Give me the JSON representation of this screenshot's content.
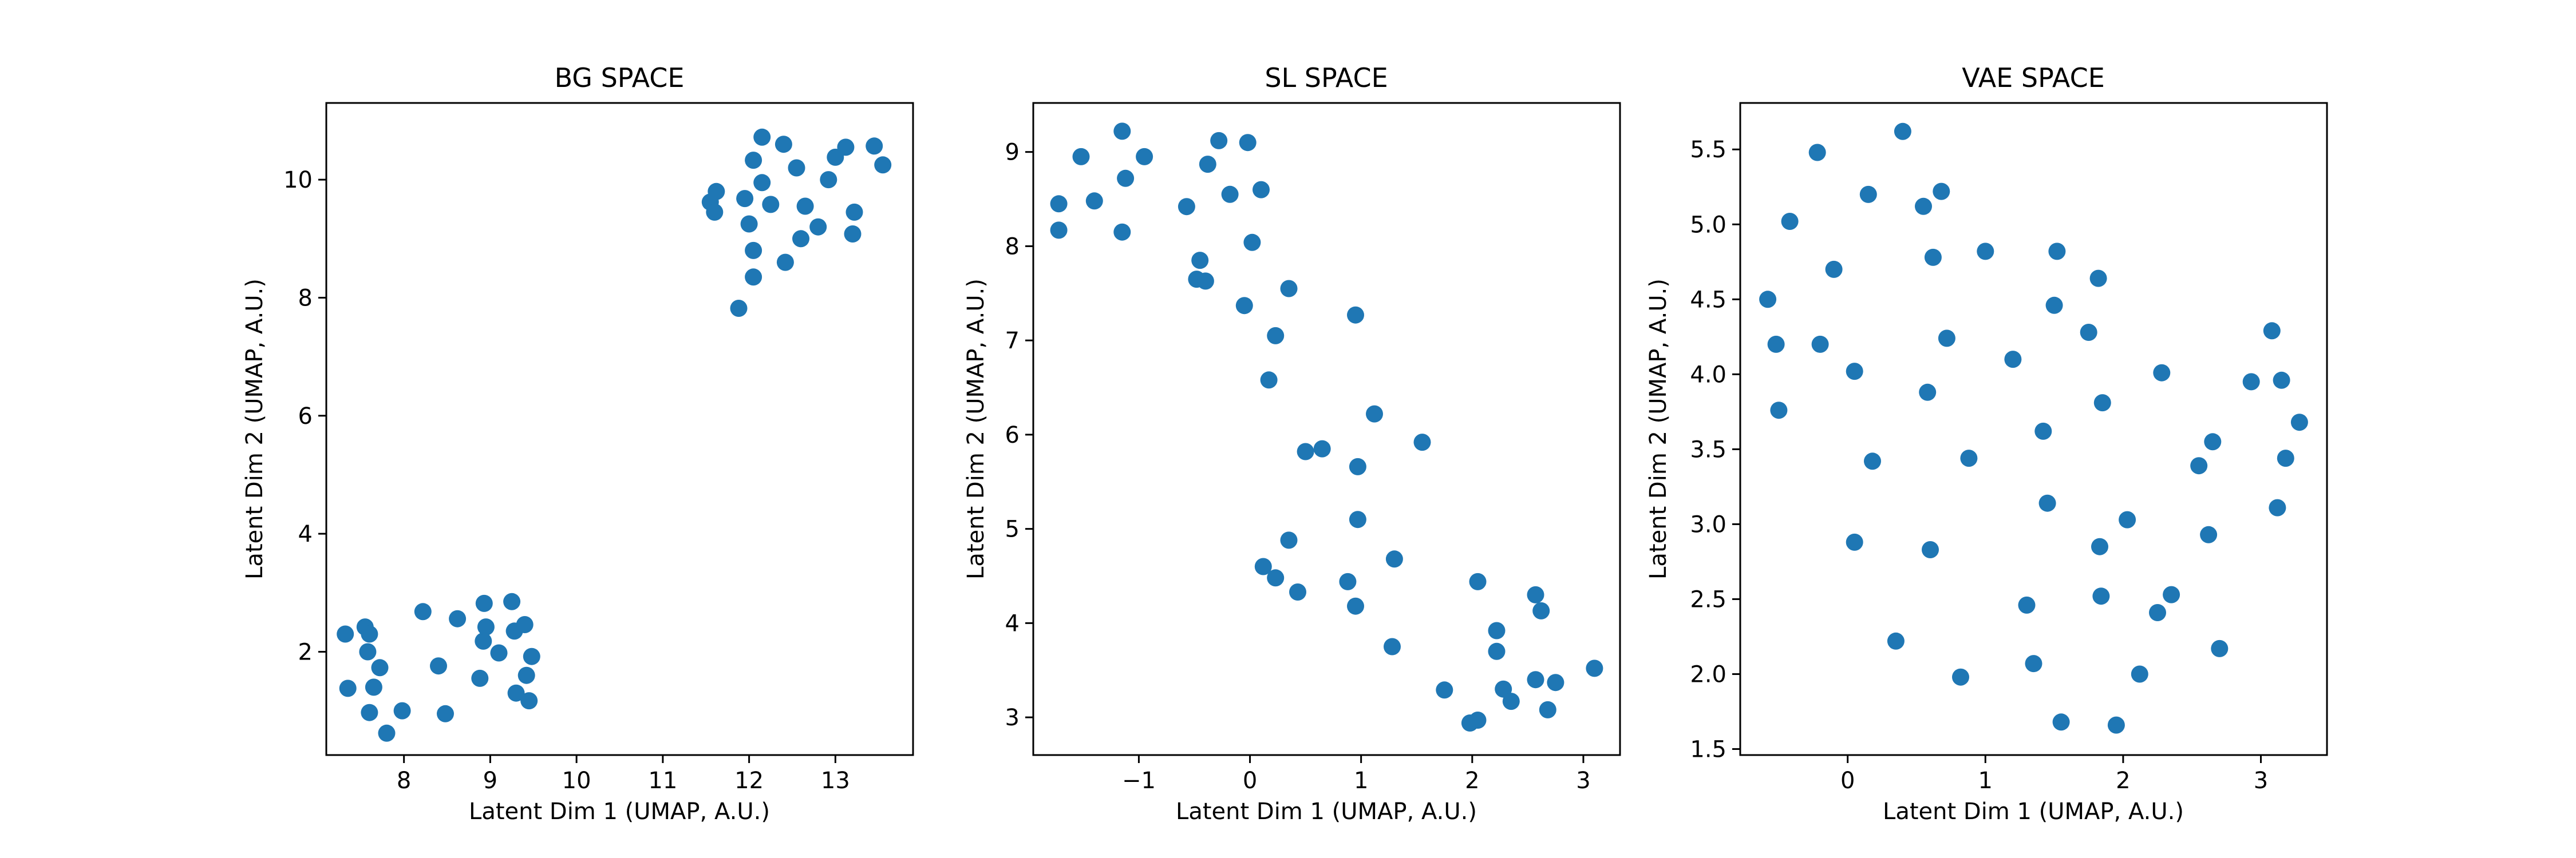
{
  "chart_data": [
    {
      "type": "scatter",
      "title": "BG SPACE",
      "xlabel": "Latent Dim 1 (UMAP, A.U.)",
      "ylabel": "Latent Dim 2 (UMAP, A.U.)",
      "xlim": [
        7.1,
        13.9
      ],
      "ylim": [
        0.25,
        11.3
      ],
      "xticks": [
        8,
        9,
        10,
        11,
        12,
        13
      ],
      "xtick_labels": [
        "8",
        "9",
        "10",
        "11",
        "12",
        "13"
      ],
      "yticks": [
        2,
        4,
        6,
        8,
        10
      ],
      "ytick_labels": [
        "2",
        "4",
        "6",
        "8",
        "10"
      ],
      "marker_color": "#1f77b4",
      "points": [
        [
          7.32,
          2.3
        ],
        [
          7.55,
          2.42
        ],
        [
          7.6,
          2.3
        ],
        [
          7.58,
          2.0
        ],
        [
          7.72,
          1.73
        ],
        [
          7.35,
          1.38
        ],
        [
          7.65,
          1.4
        ],
        [
          7.6,
          0.97
        ],
        [
          7.8,
          0.62
        ],
        [
          7.98,
          1.0
        ],
        [
          8.22,
          2.68
        ],
        [
          8.4,
          1.76
        ],
        [
          8.48,
          0.95
        ],
        [
          8.62,
          2.56
        ],
        [
          8.88,
          1.55
        ],
        [
          8.93,
          2.82
        ],
        [
          8.92,
          2.18
        ],
        [
          8.95,
          2.42
        ],
        [
          9.1,
          1.98
        ],
        [
          9.25,
          2.85
        ],
        [
          9.28,
          2.35
        ],
        [
          9.3,
          1.3
        ],
        [
          9.4,
          2.46
        ],
        [
          9.42,
          1.6
        ],
        [
          9.45,
          1.17
        ],
        [
          9.48,
          1.92
        ],
        [
          11.55,
          9.62
        ],
        [
          11.6,
          9.45
        ],
        [
          11.62,
          9.8
        ],
        [
          11.88,
          7.82
        ],
        [
          11.95,
          9.68
        ],
        [
          12.0,
          9.25
        ],
        [
          12.05,
          10.33
        ],
        [
          12.05,
          8.8
        ],
        [
          12.05,
          8.35
        ],
        [
          12.15,
          10.72
        ],
        [
          12.15,
          9.95
        ],
        [
          12.25,
          9.58
        ],
        [
          12.4,
          10.6
        ],
        [
          12.42,
          8.6
        ],
        [
          12.55,
          10.2
        ],
        [
          12.6,
          9.0
        ],
        [
          12.65,
          9.55
        ],
        [
          12.8,
          9.2
        ],
        [
          12.92,
          10.0
        ],
        [
          13.0,
          10.38
        ],
        [
          13.12,
          10.55
        ],
        [
          13.2,
          9.08
        ],
        [
          13.22,
          9.45
        ],
        [
          13.45,
          10.57
        ],
        [
          13.55,
          10.25
        ]
      ]
    },
    {
      "type": "scatter",
      "title": "SL SPACE",
      "xlabel": "Latent Dim 1 (UMAP, A.U.)",
      "ylabel": "Latent Dim 2 (UMAP, A.U.)",
      "xlim": [
        -1.95,
        3.33
      ],
      "ylim": [
        2.6,
        9.52
      ],
      "xticks": [
        -1,
        0,
        1,
        2,
        3
      ],
      "xtick_labels": [
        "−1",
        "0",
        "1",
        "2",
        "3"
      ],
      "yticks": [
        3,
        4,
        5,
        6,
        7,
        8,
        9
      ],
      "ytick_labels": [
        "3",
        "4",
        "5",
        "6",
        "7",
        "8",
        "9"
      ],
      "marker_color": "#1f77b4",
      "points": [
        [
          -1.72,
          8.45
        ],
        [
          -1.72,
          8.17
        ],
        [
          -1.52,
          8.95
        ],
        [
          -1.4,
          8.48
        ],
        [
          -1.15,
          9.22
        ],
        [
          -1.12,
          8.72
        ],
        [
          -1.15,
          8.15
        ],
        [
          -0.95,
          8.95
        ],
        [
          -0.57,
          8.42
        ],
        [
          -0.48,
          7.65
        ],
        [
          -0.45,
          7.85
        ],
        [
          -0.38,
          8.87
        ],
        [
          -0.4,
          7.63
        ],
        [
          -0.28,
          9.12
        ],
        [
          -0.18,
          8.55
        ],
        [
          -0.02,
          9.1
        ],
        [
          -0.05,
          7.37
        ],
        [
          0.02,
          8.04
        ],
        [
          0.1,
          8.6
        ],
        [
          0.17,
          6.58
        ],
        [
          0.23,
          7.05
        ],
        [
          0.35,
          7.55
        ],
        [
          0.95,
          7.27
        ],
        [
          0.5,
          5.82
        ],
        [
          0.65,
          5.85
        ],
        [
          1.12,
          6.22
        ],
        [
          0.97,
          5.66
        ],
        [
          1.55,
          5.92
        ],
        [
          0.97,
          5.1
        ],
        [
          0.35,
          4.88
        ],
        [
          0.12,
          4.6
        ],
        [
          0.23,
          4.48
        ],
        [
          0.43,
          4.33
        ],
        [
          0.88,
          4.44
        ],
        [
          0.95,
          4.18
        ],
        [
          1.3,
          4.68
        ],
        [
          1.28,
          3.75
        ],
        [
          2.05,
          4.44
        ],
        [
          2.22,
          3.92
        ],
        [
          2.22,
          3.7
        ],
        [
          2.28,
          3.3
        ],
        [
          2.35,
          3.17
        ],
        [
          2.57,
          4.3
        ],
        [
          2.62,
          4.13
        ],
        [
          2.57,
          3.4
        ],
        [
          2.68,
          3.08
        ],
        [
          2.75,
          3.37
        ],
        [
          1.75,
          3.29
        ],
        [
          1.98,
          2.94
        ],
        [
          2.05,
          2.97
        ],
        [
          3.1,
          3.52
        ]
      ]
    },
    {
      "type": "scatter",
      "title": "VAE SPACE",
      "xlabel": "Latent Dim 1 (UMAP, A.U.)",
      "ylabel": "Latent Dim 2 (UMAP, A.U.)",
      "xlim": [
        -0.78,
        3.48
      ],
      "ylim": [
        1.46,
        5.81
      ],
      "xticks": [
        0,
        1,
        2,
        3
      ],
      "xtick_labels": [
        "0",
        "1",
        "2",
        "3"
      ],
      "yticks": [
        1.5,
        2.0,
        2.5,
        3.0,
        3.5,
        4.0,
        4.5,
        5.0,
        5.5
      ],
      "ytick_labels": [
        "1.5",
        "2.0",
        "2.5",
        "3.0",
        "3.5",
        "4.0",
        "4.5",
        "5.0",
        "5.5"
      ],
      "marker_color": "#1f77b4",
      "points": [
        [
          -0.58,
          4.5
        ],
        [
          -0.52,
          4.2
        ],
        [
          -0.5,
          3.76
        ],
        [
          -0.42,
          5.02
        ],
        [
          -0.22,
          5.48
        ],
        [
          -0.2,
          4.2
        ],
        [
          -0.1,
          4.7
        ],
        [
          0.05,
          4.02
        ],
        [
          0.05,
          2.88
        ],
        [
          0.15,
          5.2
        ],
        [
          0.18,
          3.42
        ],
        [
          0.35,
          2.22
        ],
        [
          0.4,
          5.62
        ],
        [
          0.55,
          5.12
        ],
        [
          0.58,
          3.88
        ],
        [
          0.6,
          2.83
        ],
        [
          0.62,
          4.78
        ],
        [
          0.68,
          5.22
        ],
        [
          0.72,
          4.24
        ],
        [
          0.82,
          1.98
        ],
        [
          0.88,
          3.44
        ],
        [
          1.0,
          4.82
        ],
        [
          1.2,
          4.1
        ],
        [
          1.3,
          2.46
        ],
        [
          1.35,
          2.07
        ],
        [
          1.42,
          3.62
        ],
        [
          1.45,
          3.14
        ],
        [
          1.5,
          4.46
        ],
        [
          1.52,
          4.82
        ],
        [
          1.55,
          1.68
        ],
        [
          1.75,
          4.28
        ],
        [
          1.82,
          4.64
        ],
        [
          1.83,
          2.85
        ],
        [
          1.84,
          2.52
        ],
        [
          1.85,
          3.81
        ],
        [
          1.95,
          1.66
        ],
        [
          2.03,
          3.03
        ],
        [
          2.12,
          2.0
        ],
        [
          2.25,
          2.41
        ],
        [
          2.28,
          4.01
        ],
        [
          2.35,
          2.53
        ],
        [
          2.55,
          3.39
        ],
        [
          2.62,
          2.93
        ],
        [
          2.65,
          3.55
        ],
        [
          2.7,
          2.17
        ],
        [
          2.93,
          3.95
        ],
        [
          3.08,
          4.29
        ],
        [
          3.12,
          3.11
        ],
        [
          3.15,
          3.96
        ],
        [
          3.18,
          3.44
        ],
        [
          3.28,
          3.68
        ]
      ]
    }
  ]
}
